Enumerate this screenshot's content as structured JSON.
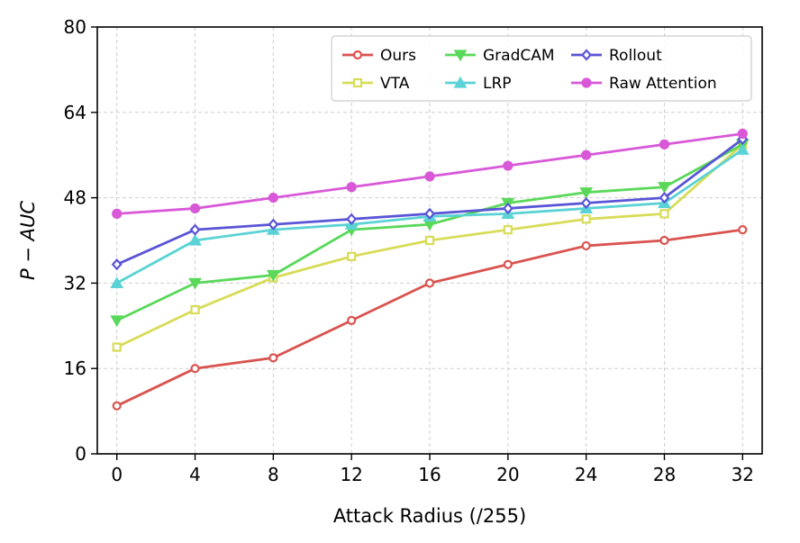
{
  "chart_data": {
    "type": "line",
    "title": "",
    "xlabel": "Attack Radius (/255)",
    "ylabel": "P − AUC",
    "x": [
      0,
      4,
      8,
      12,
      16,
      20,
      24,
      28,
      32
    ],
    "xlim": [
      -1,
      33
    ],
    "ylim": [
      0,
      80
    ],
    "yticks": [
      0,
      16,
      32,
      48,
      64,
      80
    ],
    "grid": true,
    "legend_position": "top-right",
    "series": [
      {
        "name": "Ours",
        "color": "#d9534f",
        "marker": "circle",
        "values": [
          9,
          16,
          18,
          25,
          32,
          35.5,
          39,
          40,
          42
        ]
      },
      {
        "name": " VTA",
        "color": "#d8dc58",
        "marker": "square",
        "values": [
          20,
          27,
          33,
          37,
          40,
          42,
          44,
          45,
          58
        ]
      },
      {
        "name": "GradCAM",
        "color": "#5ad85a",
        "marker": "triangle-down",
        "values": [
          25,
          32,
          33.5,
          42,
          43,
          47,
          49,
          50,
          58
        ]
      },
      {
        "name": "LRP",
        "color": "#5ad2d6",
        "marker": "triangle-up",
        "values": [
          32,
          40,
          42,
          43,
          44.5,
          45,
          46,
          47,
          57
        ]
      },
      {
        "name": "Rollout",
        "color": "#5a55d6",
        "marker": "diamond",
        "values": [
          35.5,
          42,
          43,
          44,
          45,
          46,
          47,
          48,
          59
        ]
      },
      {
        "name": "Raw Attention",
        "color": "#d858d8",
        "marker": "circle-filled",
        "values": [
          45,
          46,
          48,
          50,
          52,
          54,
          56,
          58,
          60
        ]
      }
    ]
  }
}
